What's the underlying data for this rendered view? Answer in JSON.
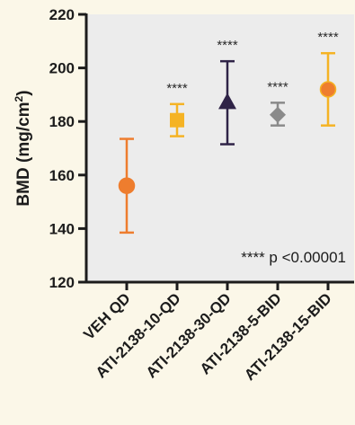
{
  "chart_data": {
    "type": "scatter",
    "ylabel": "BMD (mg/cm²)",
    "ylabel_main": "BMD (mg/cm",
    "ylabel_sup": "2",
    "ylabel_end": ")",
    "ylim": [
      120,
      220
    ],
    "yticks": [
      120,
      140,
      160,
      180,
      200,
      220
    ],
    "grid": false,
    "categories": [
      "VEH QD",
      "ATI-2138-10-QD",
      "ATI-2138-30-QD",
      "ATI-2138-5-BID",
      "ATI-2138-15-BID"
    ],
    "points": [
      {
        "category": "VEH QD",
        "mean": 156,
        "upper": 173.5,
        "lower": 138.5,
        "marker": "circle",
        "color": "#ee7d2e",
        "significance": ""
      },
      {
        "category": "ATI-2138-10-QD",
        "mean": 180.5,
        "upper": 186.5,
        "lower": 174.5,
        "marker": "square",
        "color": "#f5b324",
        "significance": "****"
      },
      {
        "category": "ATI-2138-30-QD",
        "mean": 187,
        "upper": 202.5,
        "lower": 171.5,
        "marker": "triangle",
        "color": "#2f2347",
        "significance": "****"
      },
      {
        "category": "ATI-2138-5-BID",
        "mean": 182.5,
        "upper": 187,
        "lower": 178.5,
        "marker": "diamond",
        "color": "#8a8a8a",
        "significance": "****"
      },
      {
        "category": "ATI-2138-15-BID",
        "mean": 192,
        "upper": 205.5,
        "lower": 178.5,
        "marker": "circle",
        "color": "#ee7d2e",
        "errorbar_color": "#f5b324",
        "significance": "****"
      }
    ],
    "annotation": "**** p <0.00001"
  }
}
